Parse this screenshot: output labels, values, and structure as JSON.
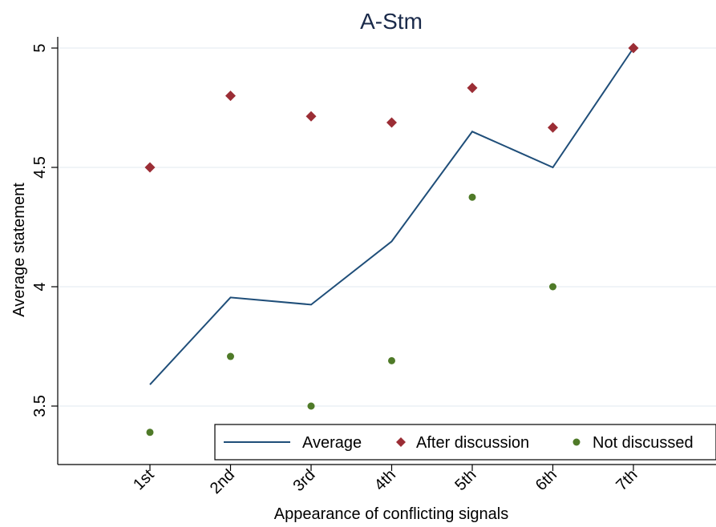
{
  "chart_data": {
    "type": "line",
    "title": "A-Stm",
    "xlabel": "Appearance of conflicting signals",
    "ylabel": "Average statement",
    "categories": [
      "1st",
      "2nd",
      "3rd",
      "4th",
      "5th",
      "6th",
      "7th"
    ],
    "ylim": [
      3.35,
      5.03
    ],
    "yticks": [
      "3.5",
      "4",
      "4.5",
      "5"
    ],
    "grid": true,
    "legend_position": "bottom-right",
    "series": [
      {
        "name": "Average",
        "kind": "line",
        "color": "#1f4e79",
        "values": [
          3.59,
          3.955,
          3.925,
          4.19,
          4.65,
          4.5,
          5.0
        ]
      },
      {
        "name": "After discussion",
        "kind": "diamond",
        "color": "#9b2d35",
        "values": [
          4.5,
          4.8,
          4.714,
          4.688,
          4.833,
          4.667,
          5.0
        ]
      },
      {
        "name": "Not discussed",
        "kind": "dot",
        "color": "#4f7a28",
        "values": [
          3.39,
          3.708,
          3.5,
          3.69,
          4.375,
          4.0,
          null
        ]
      }
    ]
  }
}
